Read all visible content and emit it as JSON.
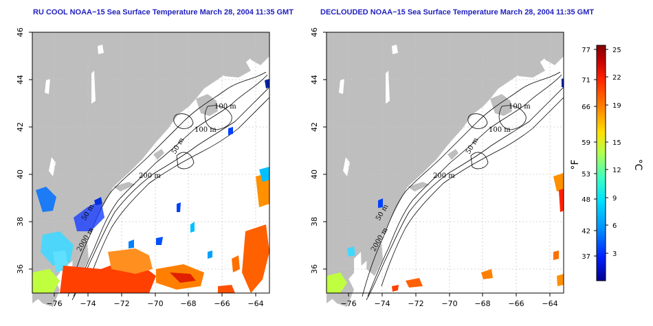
{
  "panels": [
    {
      "id": "left",
      "title": "RU COOL NOAA−15 Sea Surface Temperature March 28, 2004 11:35 GMT"
    },
    {
      "id": "right",
      "title": "DECLOUDED NOAA−15 Sea Surface Temperature March 28, 2004 11:35 GMT"
    }
  ],
  "axes": {
    "lon_ticks": [
      "−76",
      "−74",
      "−72",
      "−70",
      "−68",
      "−66",
      "−64"
    ],
    "lat_ticks": [
      "36",
      "38",
      "40",
      "42",
      "44",
      "46"
    ],
    "lon_range": [
      -77.2,
      -63
    ],
    "lat_range": [
      35,
      46
    ]
  },
  "contour_labels": [
    "100 m",
    "100 m",
    "50 m",
    "200 m",
    "50 m",
    "2000 m"
  ],
  "colorbar": {
    "fahrenheit_label": "°F",
    "celsius_label": "°C",
    "fahrenheit_ticks": [
      "77",
      "71",
      "66",
      "59",
      "53",
      "48",
      "42",
      "37"
    ],
    "celsius_ticks": [
      "25",
      "22",
      "19",
      "15",
      "12",
      "9",
      "6",
      "3"
    ],
    "range_c": [
      0,
      25
    ],
    "colors": [
      "#00008f",
      "#0020ff",
      "#0090ff",
      "#00e0ff",
      "#40ffc0",
      "#b0ff50",
      "#ffe000",
      "#ff8000",
      "#ff2000",
      "#c00000",
      "#800000"
    ]
  },
  "colors": {
    "land": "#bebebe",
    "ocean": "#ffffff",
    "title": "#1f1fbf",
    "grid": "#c8c8c8"
  }
}
